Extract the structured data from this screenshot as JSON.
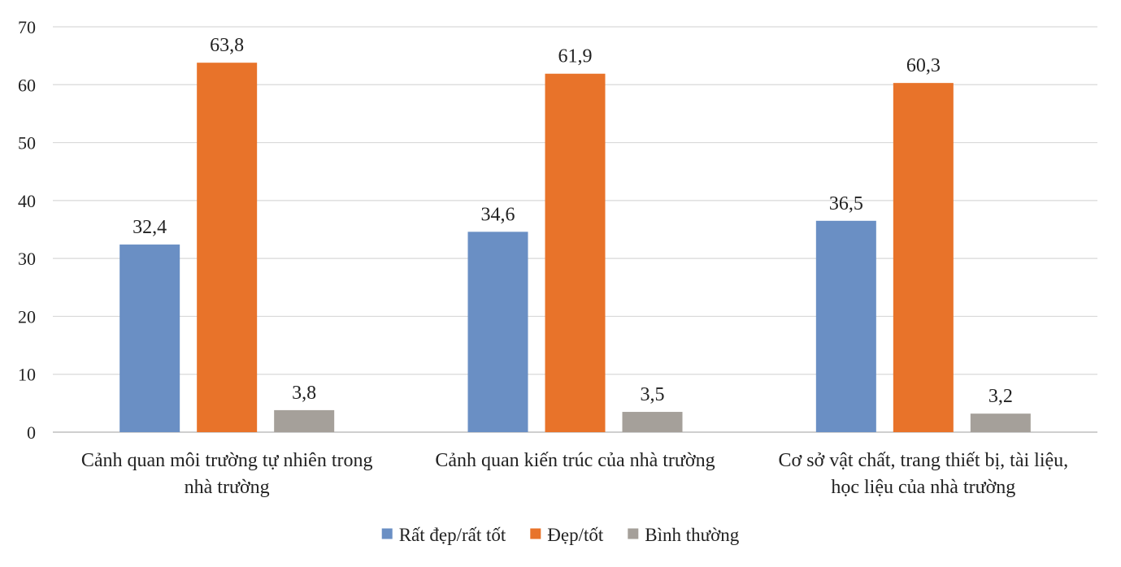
{
  "chart_data": {
    "type": "bar",
    "title": "",
    "xlabel": "",
    "ylabel": "",
    "ylim": [
      0,
      70
    ],
    "yticks": [
      0,
      10,
      20,
      30,
      40,
      50,
      60,
      70
    ],
    "grid": true,
    "legend_position": "bottom",
    "categories": [
      [
        "Cảnh quan môi trường tự nhiên trong",
        "nhà trường"
      ],
      [
        "Cảnh quan kiến trúc của nhà trường"
      ],
      [
        "Cơ sở vật chất, trang thiết bị, tài liệu,",
        "học liệu của nhà trường"
      ]
    ],
    "series": [
      {
        "name": "Rất đẹp/rất tốt",
        "color": "#6a8fc4",
        "values": [
          32.4,
          34.6,
          36.5
        ],
        "labels": [
          "32,4",
          "34,6",
          "36,5"
        ]
      },
      {
        "name": "Đẹp/tốt",
        "color": "#e8732a",
        "values": [
          63.8,
          61.9,
          60.3
        ],
        "labels": [
          "63,8",
          "61,9",
          "60,3"
        ]
      },
      {
        "name": "Bình thường",
        "color": "#a5a09a",
        "values": [
          3.8,
          3.5,
          3.2
        ],
        "labels": [
          "3,8",
          "3,5",
          "3,2"
        ]
      }
    ]
  }
}
